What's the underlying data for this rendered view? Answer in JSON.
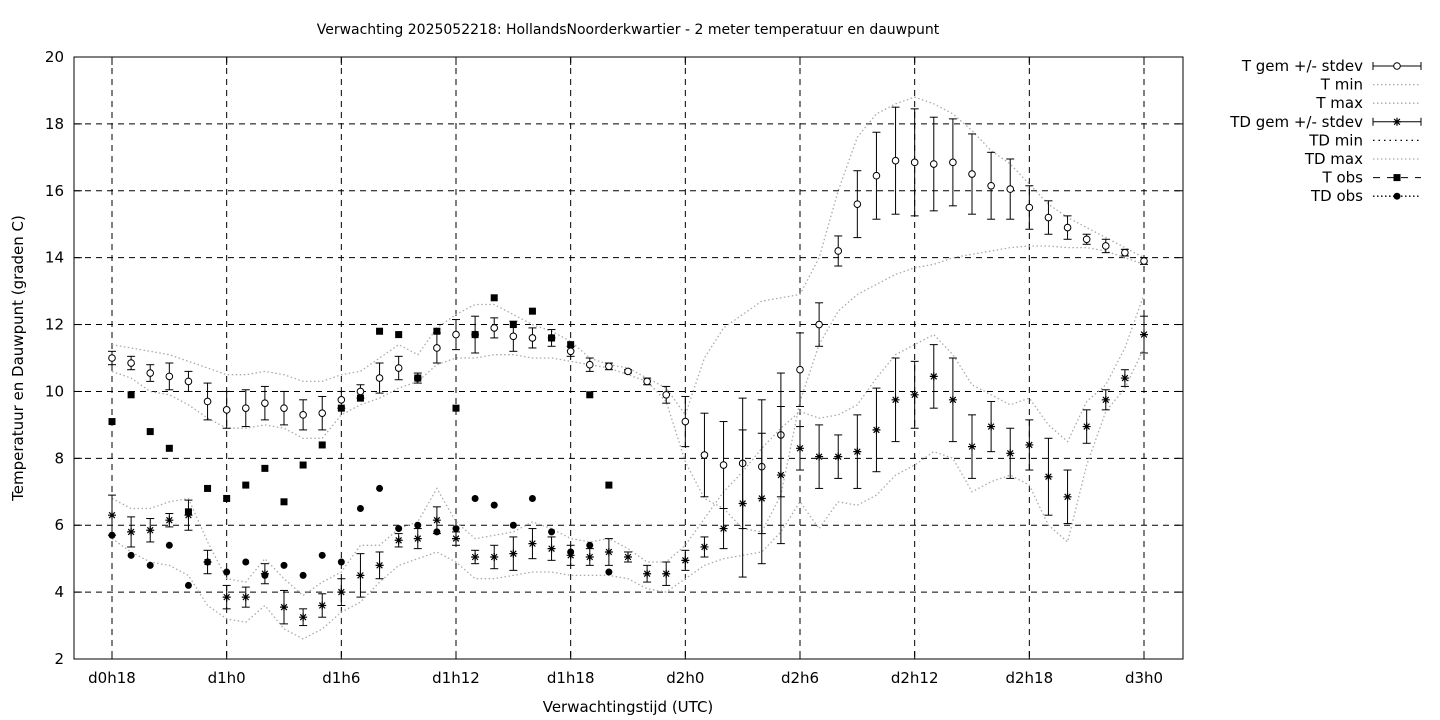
{
  "chart_data": {
    "type": "line",
    "title": "Verwachting 2025052218: HollandsNoorderkwartier - 2 meter temperatuur en dauwpunt",
    "xlabel": "Verwachtingstijd (UTC)",
    "ylabel": "Temperatuur en Dauwpunt (graden C)",
    "xlim": [
      18,
      75
    ],
    "ylim": [
      2,
      20
    ],
    "xticks": [
      {
        "v": 18,
        "label": "d0h18"
      },
      {
        "v": 24,
        "label": "d1h0"
      },
      {
        "v": 30,
        "label": "d1h6"
      },
      {
        "v": 36,
        "label": "d1h12"
      },
      {
        "v": 42,
        "label": "d1h18"
      },
      {
        "v": 48,
        "label": "d2h0"
      },
      {
        "v": 54,
        "label": "d2h6"
      },
      {
        "v": 60,
        "label": "d2h12"
      },
      {
        "v": 66,
        "label": "d2h18"
      },
      {
        "v": 72,
        "label": "d3h0"
      }
    ],
    "yticks": [
      2,
      4,
      6,
      8,
      10,
      12,
      14,
      16,
      18,
      20
    ],
    "grid": true,
    "legend_position": "outside-right",
    "series": [
      {
        "name": "T gem +/- stdev",
        "x": [
          18,
          19,
          20,
          21,
          22,
          23,
          24,
          25,
          26,
          27,
          28,
          29,
          30,
          31,
          32,
          33,
          34,
          35,
          36,
          37,
          38,
          39,
          40,
          41,
          42,
          43,
          44,
          45,
          46,
          47,
          48,
          49,
          50,
          51,
          52,
          53,
          54,
          55,
          56,
          57,
          58,
          59,
          60,
          61,
          62,
          63,
          64,
          65,
          66,
          67,
          68,
          69,
          70,
          71,
          72
        ],
        "mean": [
          11.0,
          10.85,
          10.55,
          10.45,
          10.3,
          9.7,
          9.45,
          9.5,
          9.65,
          9.5,
          9.3,
          9.35,
          9.75,
          10.0,
          10.4,
          10.7,
          10.4,
          11.3,
          11.7,
          11.7,
          11.9,
          11.65,
          11.6,
          11.6,
          11.2,
          10.8,
          10.75,
          10.6,
          10.3,
          9.9,
          9.1,
          8.1,
          7.8,
          7.85,
          7.75,
          8.7,
          10.65,
          12.0,
          14.2,
          15.6,
          16.45,
          16.9,
          16.85,
          16.8,
          16.85,
          16.5,
          16.15,
          16.05,
          15.5,
          15.2,
          14.9,
          14.55,
          14.35,
          14.15,
          13.9
        ],
        "stdev": [
          0.2,
          0.2,
          0.25,
          0.4,
          0.3,
          0.55,
          0.55,
          0.55,
          0.5,
          0.5,
          0.45,
          0.5,
          0.25,
          0.2,
          0.45,
          0.35,
          0.15,
          0.45,
          0.45,
          0.55,
          0.3,
          0.45,
          0.3,
          0.25,
          0.15,
          0.2,
          0.1,
          0.05,
          0.1,
          0.25,
          0.75,
          1.25,
          1.3,
          1.95,
          2.0,
          1.85,
          1.1,
          0.65,
          0.45,
          1.0,
          1.3,
          1.6,
          1.6,
          1.4,
          1.3,
          1.2,
          1.0,
          0.9,
          0.65,
          0.5,
          0.35,
          0.15,
          0.2,
          0.1,
          0.1
        ]
      },
      {
        "name": "T min",
        "x": [
          18,
          19,
          20,
          21,
          22,
          23,
          24,
          25,
          26,
          27,
          28,
          29,
          30,
          31,
          32,
          33,
          34,
          35,
          36,
          37,
          38,
          39,
          40,
          41,
          42,
          43,
          44,
          45,
          46,
          47,
          48,
          49,
          50,
          51,
          52,
          53,
          54,
          55,
          56,
          57,
          58,
          59,
          60,
          61,
          62,
          63,
          64,
          65,
          66,
          67,
          68,
          69,
          70,
          71,
          72
        ],
        "values": [
          10.6,
          10.4,
          10.0,
          9.9,
          9.6,
          9.2,
          8.9,
          8.9,
          9.0,
          8.9,
          8.6,
          8.6,
          9.3,
          9.6,
          9.8,
          10.1,
          10.3,
          10.8,
          11.0,
          11.0,
          11.1,
          11.1,
          11.0,
          11.0,
          10.9,
          10.8,
          10.7,
          10.5,
          10.3,
          9.7,
          7.9,
          6.8,
          6.5,
          5.9,
          5.8,
          6.9,
          9.7,
          11.4,
          12.4,
          12.9,
          13.2,
          13.5,
          13.7,
          13.8,
          14.0,
          14.1,
          14.2,
          14.3,
          14.35,
          14.35,
          14.3,
          14.3,
          14.2,
          14.0,
          13.8
        ]
      },
      {
        "name": "T max",
        "x": [
          18,
          19,
          20,
          21,
          22,
          23,
          24,
          25,
          26,
          27,
          28,
          29,
          30,
          31,
          32,
          33,
          34,
          35,
          36,
          37,
          38,
          39,
          40,
          41,
          42,
          43,
          44,
          45,
          46,
          47,
          48,
          49,
          50,
          51,
          52,
          53,
          54,
          55,
          56,
          57,
          58,
          59,
          60,
          61,
          62,
          63,
          64,
          65,
          66,
          67,
          68,
          69,
          70,
          71,
          72
        ],
        "values": [
          11.4,
          11.3,
          11.2,
          11.1,
          10.9,
          10.7,
          10.5,
          10.5,
          10.6,
          10.5,
          10.3,
          10.3,
          10.5,
          10.6,
          11.0,
          11.4,
          11.1,
          11.9,
          12.3,
          12.6,
          12.6,
          12.3,
          12.0,
          11.8,
          11.5,
          11.0,
          10.8,
          10.7,
          10.4,
          10.1,
          9.3,
          11.0,
          11.9,
          12.3,
          12.7,
          12.8,
          12.9,
          14.0,
          16.0,
          17.6,
          18.3,
          18.6,
          18.8,
          18.6,
          18.3,
          17.8,
          17.2,
          16.8,
          16.2,
          15.6,
          15.2,
          14.9,
          14.6,
          14.3,
          14.0
        ]
      },
      {
        "name": "TD gem +/- stdev",
        "x": [
          18,
          19,
          20,
          21,
          22,
          23,
          24,
          25,
          26,
          27,
          28,
          29,
          30,
          31,
          32,
          33,
          34,
          35,
          36,
          37,
          38,
          39,
          40,
          41,
          42,
          43,
          44,
          45,
          46,
          47,
          48,
          49,
          50,
          51,
          52,
          53,
          54,
          55,
          56,
          57,
          58,
          59,
          60,
          61,
          62,
          63,
          64,
          65,
          66,
          67,
          68,
          69,
          70,
          71,
          72
        ],
        "mean": [
          6.3,
          5.8,
          5.85,
          6.15,
          6.3,
          4.9,
          3.85,
          3.85,
          4.55,
          3.55,
          3.25,
          3.6,
          4.0,
          4.5,
          4.8,
          5.55,
          5.6,
          6.15,
          5.6,
          5.05,
          5.05,
          5.15,
          5.45,
          5.3,
          5.1,
          5.05,
          5.2,
          5.05,
          4.55,
          4.55,
          4.95,
          5.35,
          5.9,
          6.65,
          6.8,
          7.5,
          8.3,
          8.05,
          8.05,
          8.2,
          8.85,
          9.75,
          9.9,
          10.45,
          9.75,
          8.35,
          8.95,
          8.15,
          8.4,
          7.45,
          6.85,
          8.95,
          9.75,
          10.4,
          11.7
        ],
        "stdev": [
          0.6,
          0.45,
          0.35,
          0.2,
          0.45,
          0.35,
          0.35,
          0.3,
          0.3,
          0.5,
          0.25,
          0.35,
          0.4,
          0.65,
          0.4,
          0.2,
          0.3,
          0.4,
          0.2,
          0.2,
          0.35,
          0.5,
          0.45,
          0.35,
          0.3,
          0.25,
          0.4,
          0.15,
          0.25,
          0.35,
          0.3,
          0.3,
          0.6,
          2.2,
          1.95,
          2.05,
          0.65,
          0.95,
          0.65,
          1.1,
          1.25,
          1.25,
          1.0,
          0.95,
          1.25,
          0.95,
          0.75,
          0.75,
          0.75,
          1.15,
          0.8,
          0.5,
          0.3,
          0.25,
          0.55
        ]
      },
      {
        "name": "TD min",
        "x": [
          18,
          19,
          20,
          21,
          22,
          23,
          24,
          25,
          26,
          27,
          28,
          29,
          30,
          31,
          32,
          33,
          34,
          35,
          36,
          37,
          38,
          39,
          40,
          41,
          42,
          43,
          44,
          45,
          46,
          47,
          48,
          49,
          50,
          51,
          52,
          53,
          54,
          55,
          56,
          57,
          58,
          59,
          60,
          61,
          62,
          63,
          64,
          65,
          66,
          67,
          68,
          69,
          70,
          71,
          72
        ],
        "values": [
          5.6,
          5.2,
          4.9,
          4.8,
          4.5,
          3.6,
          3.2,
          3.1,
          3.6,
          2.9,
          2.6,
          2.9,
          3.4,
          3.7,
          4.3,
          4.8,
          5.0,
          5.2,
          4.9,
          4.4,
          4.4,
          4.5,
          4.6,
          4.6,
          4.5,
          4.5,
          4.5,
          4.4,
          4.1,
          4.0,
          4.4,
          4.8,
          5.0,
          5.1,
          5.2,
          5.8,
          6.7,
          5.9,
          6.7,
          6.6,
          6.9,
          7.5,
          7.8,
          8.2,
          8.0,
          7.0,
          7.3,
          7.5,
          7.2,
          6.0,
          5.5,
          7.8,
          9.4,
          10.1,
          11.3
        ]
      },
      {
        "name": "TD max",
        "x": [
          18,
          19,
          20,
          21,
          22,
          23,
          24,
          25,
          26,
          27,
          28,
          29,
          30,
          31,
          32,
          33,
          34,
          35,
          36,
          37,
          38,
          39,
          40,
          41,
          42,
          43,
          44,
          45,
          46,
          47,
          48,
          49,
          50,
          51,
          52,
          53,
          54,
          55,
          56,
          57,
          58,
          59,
          60,
          61,
          62,
          63,
          64,
          65,
          66,
          67,
          68,
          69,
          70,
          71,
          72
        ],
        "values": [
          6.8,
          6.5,
          6.5,
          6.7,
          6.8,
          5.5,
          4.4,
          4.3,
          5.0,
          4.4,
          3.9,
          4.3,
          4.6,
          5.4,
          5.4,
          5.9,
          6.1,
          7.1,
          6.1,
          5.6,
          5.7,
          5.8,
          6.1,
          5.9,
          5.6,
          5.5,
          5.6,
          5.3,
          4.9,
          4.9,
          5.4,
          6.2,
          7.0,
          7.6,
          8.3,
          8.9,
          9.4,
          9.2,
          9.3,
          9.6,
          10.4,
          11.1,
          11.4,
          11.7,
          11.1,
          10.2,
          9.9,
          9.6,
          9.8,
          9.0,
          8.5,
          9.7,
          10.2,
          11.3,
          12.9
        ]
      },
      {
        "name": "T obs",
        "x": [
          18,
          19,
          20,
          21,
          22,
          23,
          24,
          25,
          26,
          27,
          28,
          29,
          30,
          31,
          32,
          33,
          34,
          35,
          36,
          37,
          38,
          39,
          40,
          41,
          42,
          43,
          44
        ],
        "values": [
          9.1,
          9.9,
          8.8,
          8.3,
          6.4,
          7.1,
          6.8,
          7.2,
          7.7,
          6.7,
          7.8,
          8.4,
          9.5,
          9.8,
          11.8,
          11.7,
          10.4,
          11.8,
          9.5,
          11.7,
          12.8,
          12.0,
          12.4,
          11.6,
          11.4,
          9.9,
          7.2
        ]
      },
      {
        "name": "TD obs",
        "x": [
          18,
          19,
          20,
          21,
          22,
          23,
          24,
          25,
          26,
          27,
          28,
          29,
          30,
          31,
          32,
          33,
          34,
          35,
          36,
          37,
          38,
          39,
          40,
          41,
          42,
          43,
          44
        ],
        "values": [
          5.7,
          5.1,
          4.8,
          5.4,
          4.2,
          4.9,
          4.6,
          4.9,
          4.5,
          4.8,
          4.5,
          5.1,
          4.9,
          6.5,
          7.1,
          5.9,
          6.0,
          5.8,
          5.9,
          6.8,
          6.6,
          6.0,
          6.8,
          5.8,
          5.2,
          5.4,
          4.6
        ]
      }
    ]
  }
}
